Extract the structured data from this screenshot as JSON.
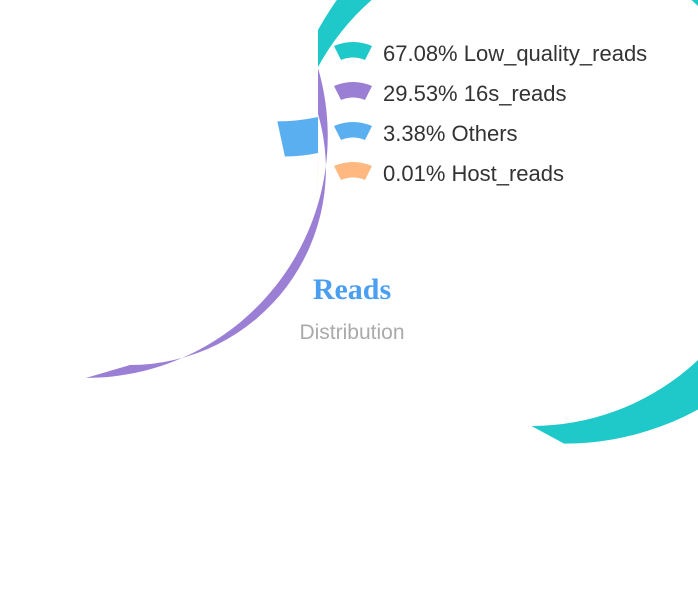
{
  "chart_data": {
    "type": "pie",
    "subtype": "radial-bar",
    "title": "Reads",
    "subtitle": "Distribution",
    "series": [
      {
        "name": "Low_quality_reads",
        "value": 67.08,
        "label": "67.08% Low_quality_reads",
        "color": "#1fc8c9"
      },
      {
        "name": "16s_reads",
        "value": 29.53,
        "label": "29.53% 16s_reads",
        "color": "#9b7fd4"
      },
      {
        "name": "Others",
        "value": 3.38,
        "label": "3.38% Others",
        "color": "#5aaff0"
      },
      {
        "name": "Host_reads",
        "value": 0.01,
        "label": "0.01% Host_reads",
        "color": "#ffb980"
      }
    ],
    "legend_position": "top-right",
    "title_color": "#4a9ff0",
    "subtitle_color": "#aaaaaa"
  }
}
